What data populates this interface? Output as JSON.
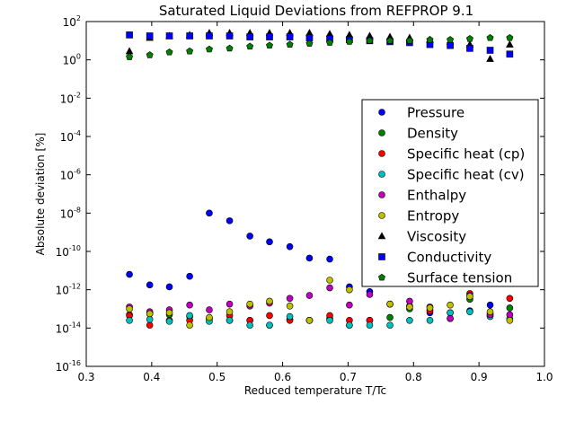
{
  "chart_data": {
    "type": "scatter",
    "title": "Saturated Liquid Deviations from REFPROP 9.1",
    "xlabel": "Reduced temperature T/Tc",
    "ylabel": "Absolute deviation [%]",
    "xlim": [
      0.3,
      1.0
    ],
    "ylim_exponent": [
      -16,
      2
    ],
    "y_scale": "log",
    "x_ticks": [
      "0.3",
      "0.4",
      "0.5",
      "0.6",
      "0.7",
      "0.8",
      "0.9",
      "1.0"
    ],
    "y_ticks": [
      {
        "base": "10",
        "exp": "-16",
        "value": -16
      },
      {
        "base": "10",
        "exp": "-14",
        "value": -14
      },
      {
        "base": "10",
        "exp": "-12",
        "value": -12
      },
      {
        "base": "10",
        "exp": "-10",
        "value": -10
      },
      {
        "base": "10",
        "exp": "-8",
        "value": -8
      },
      {
        "base": "10",
        "exp": "-6",
        "value": -6
      },
      {
        "base": "10",
        "exp": "-4",
        "value": -4
      },
      {
        "base": "10",
        "exp": "-2",
        "value": -2
      },
      {
        "base": "10",
        "exp": "0",
        "value": 0
      },
      {
        "base": "10",
        "exp": "2",
        "value": 2
      }
    ],
    "grid": false,
    "legend_position": "right",
    "x": [
      0.366,
      0.397,
      0.427,
      0.458,
      0.488,
      0.519,
      0.55,
      0.58,
      0.611,
      0.641,
      0.672,
      0.702,
      0.733,
      0.764,
      0.794,
      0.825,
      0.856,
      0.886,
      0.917,
      0.947
    ],
    "series": [
      {
        "name": "Pressure",
        "marker": "circle",
        "color": "#0000ff",
        "log10_y": [
          -11.2,
          -11.75,
          -11.85,
          -11.3,
          -8.0,
          -8.4,
          -9.2,
          -9.5,
          -9.75,
          -10.35,
          -10.4,
          -11.85,
          -12.1,
          null,
          null,
          -13.2,
          -13.2,
          -13.1,
          -12.8,
          null
        ]
      },
      {
        "name": "Density",
        "marker": "circle",
        "color": "#008000",
        "log10_y": [
          -13.3,
          -13.25,
          -13.3,
          -13.4,
          -13.5,
          -13.6,
          -13.6,
          -13.85,
          -13.55,
          -13.6,
          -13.5,
          -13.85,
          -13.6,
          -13.45,
          -13.0,
          -13.05,
          -13.5,
          -12.5,
          -13.25,
          -12.95
        ]
      },
      {
        "name": "Specific heat (cp)",
        "marker": "circle",
        "color": "#ff0000",
        "log10_y": [
          -13.35,
          -13.85,
          -13.6,
          -13.6,
          -13.5,
          -13.35,
          -13.6,
          -13.35,
          -13.6,
          -13.6,
          -13.35,
          -13.6,
          -13.6,
          -12.75,
          -12.85,
          -13.1,
          -13.5,
          -12.2,
          -13.35,
          -12.45
        ]
      },
      {
        "name": "Specific heat (cv)",
        "marker": "circle",
        "color": "#00bfbf",
        "log10_y": [
          -13.6,
          -13.55,
          -13.65,
          -13.35,
          -13.65,
          -13.6,
          -13.85,
          -13.85,
          -13.4,
          -13.6,
          -13.6,
          -13.85,
          -13.85,
          -13.85,
          -13.6,
          -13.6,
          -13.2,
          -13.15,
          -13.4,
          -13.5
        ]
      },
      {
        "name": "Enthalpy",
        "marker": "circle",
        "color": "#bf00bf",
        "log10_y": [
          -12.9,
          -13.15,
          -13.05,
          -12.8,
          -13.05,
          -12.75,
          -12.85,
          -12.7,
          -12.45,
          -12.3,
          -11.9,
          -12.8,
          -12.25,
          -12.75,
          -12.6,
          -12.9,
          -13.5,
          -12.3,
          -13.3,
          -13.3
        ]
      },
      {
        "name": "Entropy",
        "marker": "circle",
        "color": "#bfbf00",
        "log10_y": [
          -13.0,
          -13.25,
          -13.2,
          -13.85,
          -13.45,
          -13.15,
          -12.75,
          -12.6,
          -12.85,
          -13.6,
          -11.5,
          -12.0,
          null,
          -12.75,
          -12.9,
          -12.95,
          -12.8,
          -12.35,
          -13.15,
          -13.6
        ]
      },
      {
        "name": "Viscosity",
        "marker": "triangle",
        "color": "#000000",
        "log10_y": [
          0.45,
          1.15,
          1.25,
          1.3,
          1.4,
          1.4,
          1.4,
          1.4,
          1.4,
          1.4,
          1.35,
          1.3,
          1.25,
          1.2,
          1.15,
          1.05,
          0.95,
          0.8,
          0.05,
          0.8
        ]
      },
      {
        "name": "Conductivity",
        "marker": "square",
        "color": "#0000ff",
        "log10_y": [
          1.3,
          1.25,
          1.25,
          1.25,
          1.25,
          1.25,
          1.2,
          1.2,
          1.2,
          1.15,
          1.1,
          1.05,
          1.0,
          0.95,
          0.9,
          0.8,
          0.75,
          0.6,
          0.5,
          0.3
        ]
      },
      {
        "name": "Surface tension",
        "marker": "pentagon",
        "color": "#008000",
        "log10_y": [
          0.15,
          0.25,
          0.4,
          0.45,
          0.55,
          0.6,
          0.7,
          0.75,
          0.8,
          0.85,
          0.9,
          0.95,
          1.0,
          1.0,
          1.0,
          1.05,
          1.05,
          1.1,
          1.15,
          1.15
        ]
      }
    ]
  }
}
